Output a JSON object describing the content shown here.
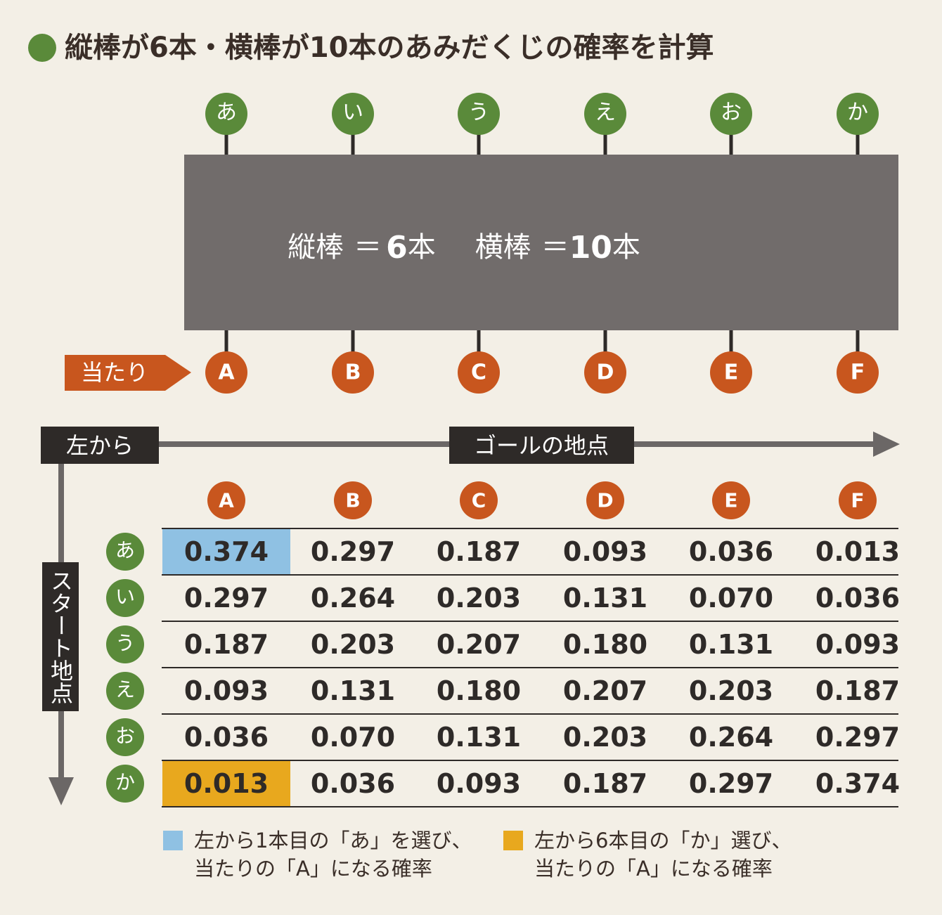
{
  "title": "縦棒が6本・横棒が10本のあみだくじの確率を計算",
  "top_labels": [
    "あ",
    "い",
    "う",
    "え",
    "お",
    "か"
  ],
  "box": {
    "left_name": "縦棒",
    "left_eq": "＝",
    "left_count": "6",
    "left_unit": "本",
    "right_name": "横棒",
    "right_eq": "＝",
    "right_count": "10",
    "right_unit": "本"
  },
  "bottom_labels": [
    "A",
    "B",
    "C",
    "D",
    "E",
    "F"
  ],
  "hit_label": "当たり",
  "axes": {
    "x_start": "左から",
    "x_title": "ゴールの地点",
    "y_title": "スタート地点"
  },
  "table": {
    "columns": [
      "A",
      "B",
      "C",
      "D",
      "E",
      "F"
    ],
    "row_headers": [
      "あ",
      "い",
      "う",
      "え",
      "お",
      "か"
    ],
    "rows": [
      [
        "0.374",
        "0.297",
        "0.187",
        "0.093",
        "0.036",
        "0.013"
      ],
      [
        "0.297",
        "0.264",
        "0.203",
        "0.131",
        "0.070",
        "0.036"
      ],
      [
        "0.187",
        "0.203",
        "0.207",
        "0.180",
        "0.131",
        "0.093"
      ],
      [
        "0.093",
        "0.131",
        "0.180",
        "0.207",
        "0.203",
        "0.187"
      ],
      [
        "0.036",
        "0.070",
        "0.131",
        "0.203",
        "0.264",
        "0.297"
      ],
      [
        "0.013",
        "0.036",
        "0.093",
        "0.187",
        "0.297",
        "0.374"
      ]
    ]
  },
  "legend": [
    {
      "color": "#8fc1e3",
      "lines": [
        "左から1本目の「あ」を選び、",
        "当たりの「A」になる確率"
      ]
    },
    {
      "color": "#e8a81e",
      "lines": [
        "左から6本目の「か」選び、",
        "当たりの「A」になる確率"
      ]
    }
  ]
}
